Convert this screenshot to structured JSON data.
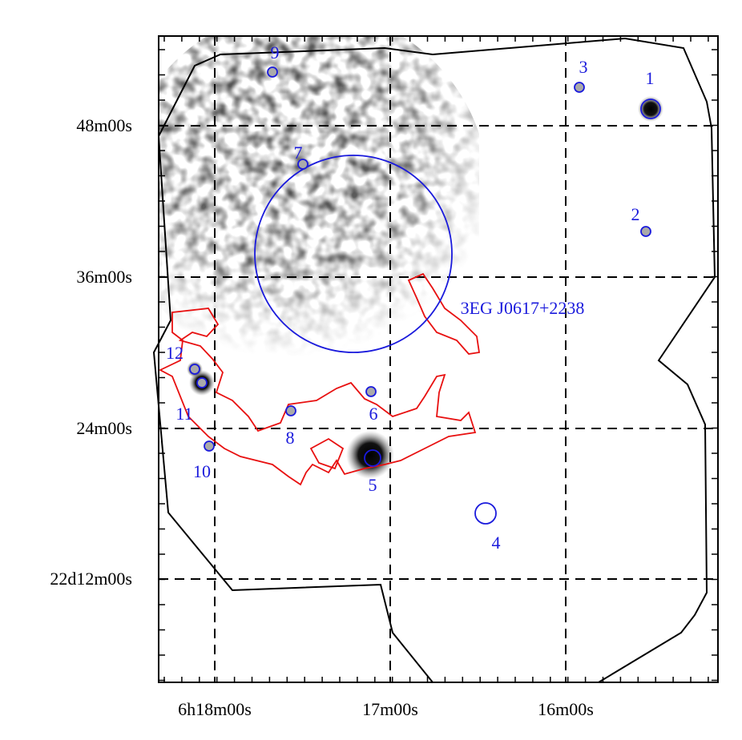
{
  "axes": {
    "y_labels": [
      "48m00s",
      "36m00s",
      "24m00s",
      "22d12m00s"
    ],
    "x_labels": [
      "6h18m00s",
      "17m00s",
      "16m00s"
    ]
  },
  "sources": [
    {
      "label": "1"
    },
    {
      "label": "2"
    },
    {
      "label": "3"
    },
    {
      "label": "4"
    },
    {
      "label": "5"
    },
    {
      "label": "6"
    },
    {
      "label": "7"
    },
    {
      "label": "8"
    },
    {
      "label": "9"
    },
    {
      "label": "10"
    },
    {
      "label": "11"
    },
    {
      "label": "12"
    }
  ],
  "region_label": "3EG J0617+2238"
}
